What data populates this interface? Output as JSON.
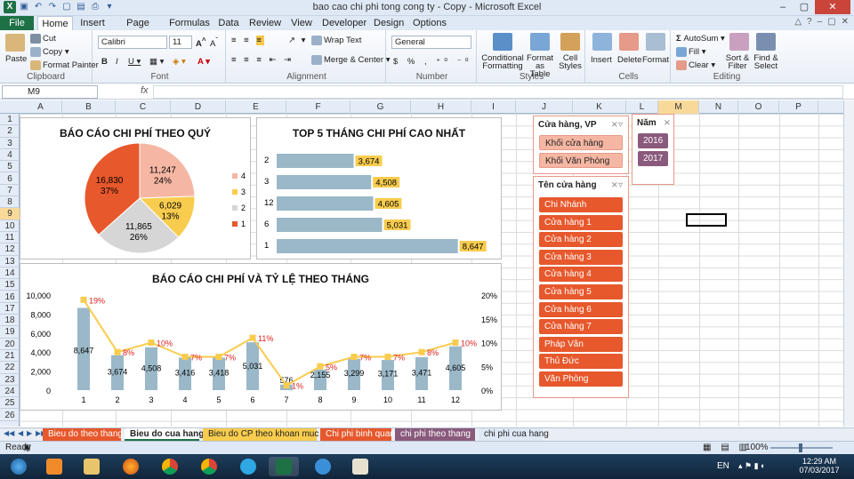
{
  "window": {
    "title": "bao cao chi phi tong cong ty - Copy  -  Microsoft Excel"
  },
  "ribbon": {
    "file_tab": "File",
    "tabs": [
      "Home",
      "Insert",
      "Page Layout",
      "Formulas",
      "Data",
      "Review",
      "View",
      "Developer",
      "Design",
      "Options"
    ],
    "clipboard": {
      "paste": "Paste",
      "cut": "Cut",
      "copy": "Copy",
      "format_painter": "Format Painter",
      "label": "Clipboard"
    },
    "font": {
      "name": "Calibri",
      "size": "11",
      "label": "Font"
    },
    "alignment": {
      "wrap": "Wrap Text",
      "merge": "Merge & Center",
      "label": "Alignment"
    },
    "number": {
      "format": "General",
      "label": "Number"
    },
    "styles": {
      "conditional": "Conditional Formatting",
      "format_table": "Format as Table",
      "cell_styles": "Cell Styles",
      "label": "Styles"
    },
    "cells": {
      "insert": "Insert",
      "delete": "Delete",
      "format": "Format",
      "label": "Cells"
    },
    "editing": {
      "autosum": "AutoSum",
      "fill": "Fill",
      "clear": "Clear",
      "sort": "Sort & Filter",
      "find": "Find & Select",
      "label": "Editing"
    }
  },
  "formula_bar": {
    "name_box": "M9",
    "fx": "fx",
    "content": ""
  },
  "columns": [
    "A",
    "B",
    "C",
    "D",
    "E",
    "F",
    "G",
    "H",
    "I",
    "J",
    "K",
    "L",
    "M",
    "N",
    "O",
    "P"
  ],
  "rows": [
    "1",
    "2",
    "3",
    "4",
    "5",
    "6",
    "7",
    "8",
    "9",
    "10",
    "11",
    "12",
    "13",
    "14",
    "15",
    "16",
    "17",
    "18",
    "19",
    "20",
    "21",
    "22",
    "23",
    "24",
    "25",
    "26"
  ],
  "charts": {
    "quarter": {
      "title": "BÁO CÁO CHI PHÍ THEO QUÝ"
    },
    "top5": {
      "title": "TOP 5 THÁNG CHI PHÍ CAO NHẤT"
    },
    "monthly": {
      "title": "BÁO CÁO CHI PHÍ VÀ TỶ LỆ THEO THÁNG"
    }
  },
  "chart_data": [
    {
      "type": "pie",
      "title": "BÁO CÁO CHI PHÍ THEO QUÝ",
      "categories": [
        "4",
        "3",
        "2",
        "1"
      ],
      "values": [
        11247,
        6029,
        11865,
        16830
      ],
      "percent_labels": [
        "24%",
        "13%",
        "26%",
        "37%"
      ],
      "value_labels": [
        "11,247",
        "6,029",
        "11,865",
        "16,830"
      ],
      "colors": [
        "#f5b7a3",
        "#f8cc4e",
        "#d6d6d6",
        "#e7582c"
      ],
      "legend": "right"
    },
    {
      "type": "bar",
      "title": "TOP 5 THÁNG CHI PHÍ CAO NHẤT",
      "orientation": "horizontal",
      "categories": [
        "2",
        "3",
        "12",
        "6",
        "1"
      ],
      "values": [
        3674,
        4508,
        4605,
        5031,
        8647
      ],
      "value_labels": [
        "3,674",
        "4,508",
        "4,605",
        "5,031",
        "8,647"
      ],
      "bar_color": "#9ab8c8",
      "label_color": "#f8cc4e"
    },
    {
      "type": "bar",
      "title": "BÁO CÁO CHI PHÍ VÀ TỶ LỆ THEO THÁNG",
      "categories": [
        "1",
        "2",
        "3",
        "4",
        "5",
        "6",
        "7",
        "8",
        "9",
        "10",
        "11",
        "12"
      ],
      "series": [
        {
          "values": [
            8647,
            3674,
            4508,
            3416,
            3418,
            5031,
            576,
            2155,
            3299,
            3171,
            3471,
            4605
          ],
          "color": "#9ab8c8"
        },
        {
          "values": [
            19,
            8,
            10,
            7,
            7,
            11,
            1,
            5,
            7,
            7,
            8,
            10
          ],
          "color": "#f8cc4e"
        }
      ],
      "value_labels": [
        "8,647",
        "3,674",
        "4,508",
        "3,416",
        "3,418",
        "5,031",
        "576",
        "2,155",
        "3,299",
        "3,171",
        "3,471",
        "4,605"
      ],
      "pct_labels": [
        "19%",
        "8%",
        "10%",
        "7%",
        "7%",
        "11%",
        "1%",
        "5%",
        "7%",
        "7%",
        "8%",
        "10%"
      ],
      "ylim": [
        0,
        10000
      ],
      "yticks": [
        "10,000",
        "8,000",
        "6,000",
        "4,000",
        "2,000",
        "0"
      ],
      "y2lim": [
        0,
        20
      ],
      "y2ticks": [
        "20%",
        "15%",
        "10%",
        "5%",
        "0%"
      ]
    }
  ],
  "slicers": {
    "vp": {
      "title": "Cửa hàng, VP",
      "items": [
        "Khối cửa hàng",
        "Khối Văn Phòng"
      ]
    },
    "year": {
      "title": "Năm",
      "items": [
        "2016",
        "2017"
      ]
    },
    "store": {
      "title": "Tên cửa hàng",
      "items": [
        "Chi Nhánh",
        "Cửa hàng 1",
        "Cửa hàng 2",
        "Cửa hàng 3",
        "Cửa hàng 4",
        "Cửa hàng 5",
        "Cửa hàng 6",
        "Cửa hàng 7",
        "Pháp Vân",
        "Thủ Đức",
        "Văn Phòng"
      ]
    }
  },
  "sheet_tabs": [
    {
      "label": "Bieu do theo thang",
      "color": "#e7582c"
    },
    {
      "label": "Bieu do cua hang",
      "color": "#ffffff"
    },
    {
      "label": "Bieu do CP theo khoan muc",
      "color": "#f8cc4e"
    },
    {
      "label": "Chi phi binh quan",
      "color": "#e7582c"
    },
    {
      "label": "chi phi theo thang",
      "color": "#8a5a7c"
    },
    {
      "label": "chi phi cua hang",
      "color": "#dfe9f5"
    }
  ],
  "status": {
    "ready": "Ready",
    "zoom": "100%"
  },
  "taskbar": {
    "lang": "EN",
    "time": "12:29 AM",
    "date": "07/03/2017"
  }
}
